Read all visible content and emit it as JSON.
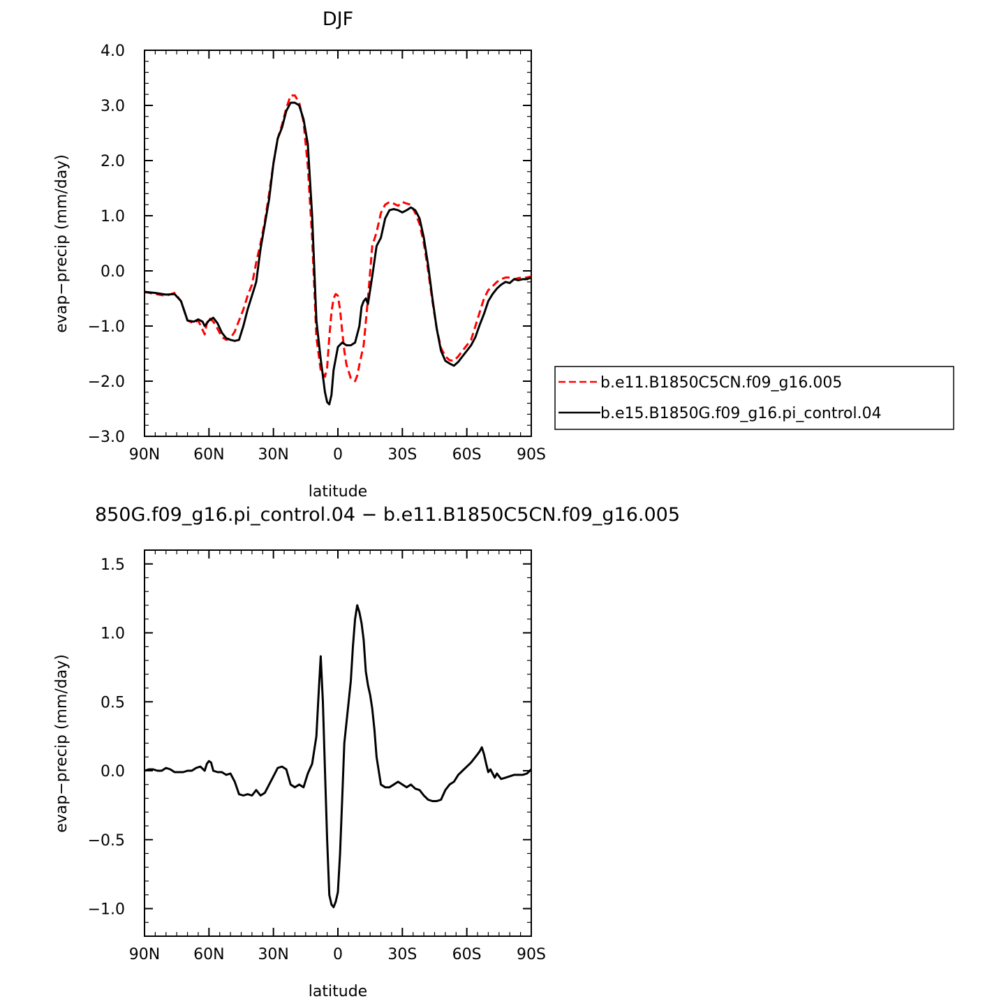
{
  "chart_data": [
    {
      "type": "line",
      "title": "DJF",
      "xlabel": "latitude",
      "ylabel": "evap−precip (mm/day)",
      "x_ticks": [
        "90N",
        "60N",
        "30N",
        "0",
        "30S",
        "60S",
        "90S"
      ],
      "x_tick_values": [
        90,
        60,
        30,
        0,
        -30,
        -60,
        -90
      ],
      "y_ticks": [
        "−3.0",
        "−2.0",
        "−1.0",
        "0.0",
        "1.0",
        "2.0",
        "3.0",
        "4.0"
      ],
      "y_tick_values": [
        -3,
        -2,
        -1,
        0,
        1,
        2,
        3,
        4
      ],
      "xlim": [
        90,
        -90
      ],
      "ylim": [
        -3,
        4
      ],
      "legend_position": "right",
      "series": [
        {
          "name": "b.e11.B1850C5CN.f09_g16.005",
          "color": "#ff0000",
          "dash": "dashed",
          "x": [
            90,
            85,
            80,
            76,
            73,
            70,
            67,
            65,
            62,
            61,
            60,
            58,
            56,
            54,
            52,
            50,
            48,
            46,
            44,
            42,
            40,
            38,
            36,
            34,
            32,
            30,
            28,
            26,
            24,
            22,
            20,
            18,
            16,
            14,
            12,
            10,
            8,
            6,
            5,
            4,
            3,
            2,
            1,
            0,
            -1,
            -2,
            -3,
            -4,
            -6,
            -8,
            -9,
            -10,
            -12,
            -14,
            -16,
            -18,
            -20,
            -22,
            -24,
            -26,
            -28,
            -30,
            -32,
            -34,
            -36,
            -38,
            -40,
            -42,
            -44,
            -46,
            -48,
            -50,
            -52,
            -54,
            -56,
            -58,
            -60,
            -62,
            -64,
            -66,
            -68,
            -70,
            -72,
            -74,
            -76,
            -78,
            -80,
            -82,
            -84,
            -86,
            -88,
            -90
          ],
          "y": [
            -0.38,
            -0.42,
            -0.45,
            -0.4,
            -0.55,
            -0.9,
            -0.95,
            -0.9,
            -1.15,
            -0.95,
            -0.85,
            -0.92,
            -1.05,
            -1.2,
            -1.25,
            -1.22,
            -1.1,
            -0.9,
            -0.7,
            -0.45,
            -0.25,
            0.15,
            0.5,
            0.9,
            1.4,
            1.95,
            2.4,
            2.65,
            2.95,
            3.18,
            3.18,
            3.05,
            2.7,
            1.9,
            0.6,
            -1.2,
            -1.8,
            -1.92,
            -1.75,
            -1.2,
            -0.75,
            -0.5,
            -0.42,
            -0.45,
            -0.7,
            -1.1,
            -1.45,
            -1.7,
            -1.95,
            -2.0,
            -1.9,
            -1.7,
            -1.35,
            -0.5,
            0.45,
            0.7,
            1.05,
            1.2,
            1.25,
            1.22,
            1.18,
            1.25,
            1.22,
            1.2,
            1.05,
            0.85,
            0.5,
            0.0,
            -0.55,
            -1.05,
            -1.4,
            -1.55,
            -1.62,
            -1.63,
            -1.55,
            -1.45,
            -1.35,
            -1.25,
            -1.0,
            -0.75,
            -0.5,
            -0.35,
            -0.28,
            -0.2,
            -0.15,
            -0.12,
            -0.12,
            -0.15,
            -0.13,
            -0.12,
            -0.12,
            -0.1
          ]
        },
        {
          "name": "b.e15.B1850G.f09_g16.pi_control.04",
          "color": "#000000",
          "dash": "solid",
          "x": [
            90,
            85,
            80,
            76,
            73,
            70,
            67,
            65,
            63,
            62,
            60,
            58,
            56,
            54,
            52,
            50,
            48,
            46,
            44,
            42,
            40,
            38,
            36,
            34,
            32,
            30,
            28,
            26,
            24,
            22,
            20,
            18,
            16,
            14,
            12,
            10,
            8,
            6,
            5,
            4,
            3,
            2,
            0,
            -2,
            -4,
            -6,
            -8,
            -10,
            -11,
            -12,
            -13,
            -14,
            -16,
            -18,
            -20,
            -22,
            -24,
            -26,
            -28,
            -30,
            -32,
            -34,
            -36,
            -38,
            -40,
            -42,
            -44,
            -46,
            -48,
            -50,
            -52,
            -54,
            -56,
            -58,
            -60,
            -62,
            -64,
            -66,
            -68,
            -70,
            -72,
            -74,
            -76,
            -78,
            -80,
            -82,
            -84,
            -86,
            -88,
            -90
          ],
          "y": [
            -0.38,
            -0.4,
            -0.43,
            -0.42,
            -0.55,
            -0.9,
            -0.92,
            -0.88,
            -0.92,
            -1.0,
            -0.9,
            -0.85,
            -0.95,
            -1.12,
            -1.22,
            -1.25,
            -1.27,
            -1.25,
            -1.0,
            -0.7,
            -0.45,
            -0.2,
            0.4,
            0.85,
            1.3,
            1.95,
            2.4,
            2.6,
            2.9,
            3.05,
            3.05,
            3.0,
            2.75,
            2.3,
            1.0,
            -0.9,
            -1.6,
            -2.2,
            -2.38,
            -2.42,
            -2.25,
            -1.8,
            -1.38,
            -1.3,
            -1.35,
            -1.35,
            -1.3,
            -1.0,
            -0.65,
            -0.55,
            -0.5,
            -0.6,
            -0.1,
            0.45,
            0.6,
            0.95,
            1.1,
            1.12,
            1.1,
            1.06,
            1.1,
            1.15,
            1.1,
            0.95,
            0.6,
            0.1,
            -0.5,
            -1.05,
            -1.45,
            -1.63,
            -1.68,
            -1.72,
            -1.65,
            -1.55,
            -1.45,
            -1.35,
            -1.2,
            -0.98,
            -0.78,
            -0.55,
            -0.42,
            -0.32,
            -0.25,
            -0.2,
            -0.22,
            -0.15,
            -0.17,
            -0.15,
            -0.15,
            -0.12
          ]
        }
      ]
    },
    {
      "type": "line",
      "title": "850G.f09_g16.pi_control.04 − b.e11.B1850C5CN.f09_g16.005",
      "xlabel": "latitude",
      "ylabel": "evap−precip (mm/day)",
      "x_ticks": [
        "90N",
        "60N",
        "30N",
        "0",
        "30S",
        "60S",
        "90S"
      ],
      "x_tick_values": [
        90,
        60,
        30,
        0,
        -30,
        -60,
        -90
      ],
      "y_ticks": [
        "−1.0",
        "−0.5",
        "0.0",
        "0.5",
        "1.0",
        "1.5"
      ],
      "y_tick_values": [
        -1,
        -0.5,
        0,
        0.5,
        1,
        1.5
      ],
      "xlim": [
        90,
        -90
      ],
      "ylim": [
        -1.2,
        1.6
      ],
      "series": [
        {
          "name": "",
          "color": "#000000",
          "dash": "solid",
          "x": [
            90,
            88,
            86,
            84,
            82,
            80,
            78,
            76,
            74,
            72,
            70,
            68,
            66,
            64,
            62,
            61,
            60,
            59,
            58,
            56,
            54,
            52,
            50,
            48,
            46,
            44,
            42,
            40,
            38,
            36,
            34,
            32,
            30,
            28,
            26,
            24,
            22,
            20,
            18,
            16,
            14,
            12,
            10,
            9,
            8,
            7,
            6,
            5,
            4,
            3,
            2,
            1,
            0,
            -1,
            -2,
            -3,
            -4,
            -5,
            -6,
            -7,
            -8,
            -9,
            -10,
            -11,
            -12,
            -13,
            -14,
            -15,
            -16,
            -17,
            -18,
            -20,
            -22,
            -24,
            -26,
            -28,
            -30,
            -32,
            -34,
            -36,
            -38,
            -40,
            -42,
            -44,
            -46,
            -48,
            -50,
            -52,
            -54,
            -56,
            -58,
            -60,
            -62,
            -64,
            -65,
            -66,
            -67,
            -68,
            -69,
            -70,
            -71,
            -72,
            -73,
            -74,
            -75,
            -76,
            -78,
            -80,
            -82,
            -84,
            -86,
            -88,
            -90
          ],
          "y": [
            0.0,
            0.01,
            0.01,
            0.0,
            0.0,
            0.02,
            0.01,
            -0.01,
            -0.01,
            -0.01,
            0.0,
            0.0,
            0.02,
            0.03,
            0.0,
            0.05,
            0.07,
            0.06,
            0.0,
            -0.01,
            -0.01,
            -0.03,
            -0.02,
            -0.08,
            -0.17,
            -0.18,
            -0.17,
            -0.18,
            -0.14,
            -0.18,
            -0.16,
            -0.1,
            -0.04,
            0.02,
            0.03,
            0.01,
            -0.1,
            -0.12,
            -0.1,
            -0.12,
            -0.02,
            0.05,
            0.25,
            0.55,
            0.83,
            0.5,
            0.0,
            -0.5,
            -0.9,
            -0.97,
            -0.99,
            -0.95,
            -0.88,
            -0.6,
            -0.2,
            0.2,
            0.35,
            0.5,
            0.65,
            0.9,
            1.1,
            1.2,
            1.15,
            1.07,
            0.95,
            0.72,
            0.62,
            0.55,
            0.45,
            0.3,
            0.1,
            -0.1,
            -0.12,
            -0.12,
            -0.1,
            -0.08,
            -0.1,
            -0.12,
            -0.1,
            -0.13,
            -0.14,
            -0.18,
            -0.21,
            -0.22,
            -0.22,
            -0.21,
            -0.14,
            -0.1,
            -0.08,
            -0.03,
            0.0,
            0.03,
            0.06,
            0.1,
            0.12,
            0.14,
            0.17,
            0.12,
            0.05,
            -0.01,
            0.01,
            -0.02,
            -0.05,
            -0.02,
            -0.04,
            -0.06,
            -0.05,
            -0.04,
            -0.03,
            -0.03,
            -0.03,
            -0.02,
            0.01
          ]
        }
      ]
    }
  ]
}
